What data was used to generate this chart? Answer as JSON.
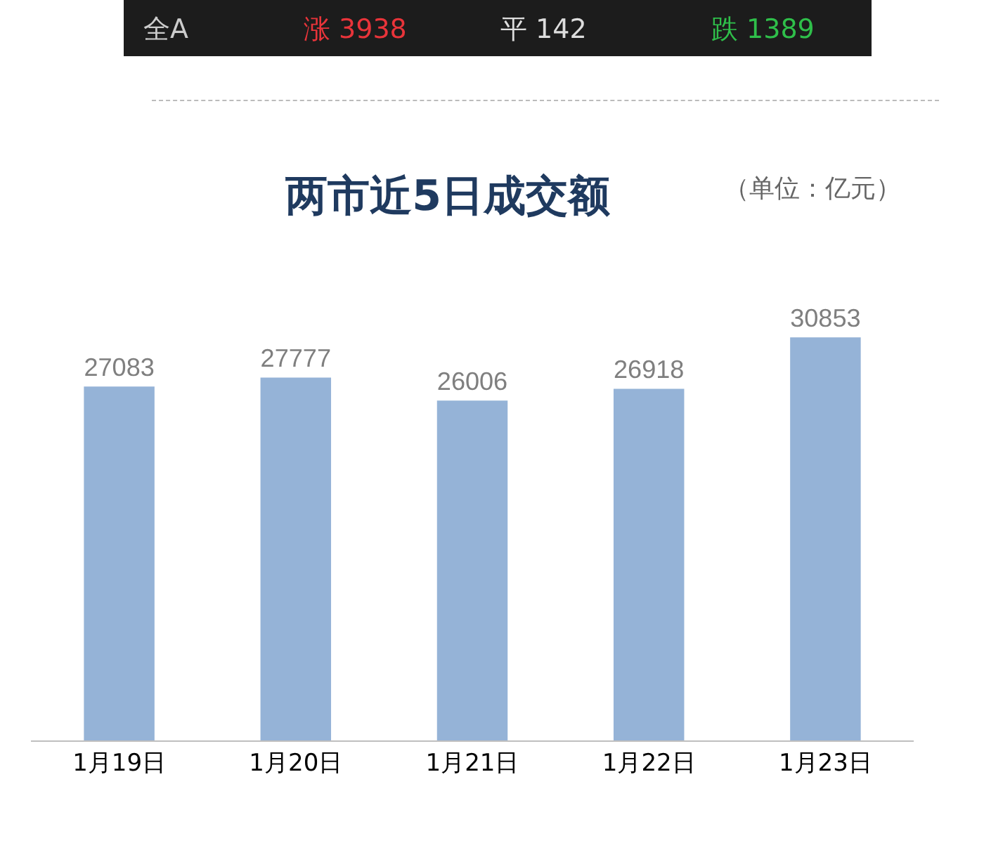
{
  "chart_data": {
    "type": "bar",
    "title": "两市近5日成交额",
    "subtitle": "（单位：亿元）",
    "categories": [
      "1月19日",
      "1月20日",
      "1月21日",
      "1月22日",
      "1月23日"
    ],
    "values": [
      27083,
      27777,
      26006,
      26918,
      30853
    ],
    "color": "#95b3d7",
    "data_labels": true,
    "annotations": [
      "全A",
      "涨 3938",
      "平 142",
      "跌 1389"
    ]
  }
}
